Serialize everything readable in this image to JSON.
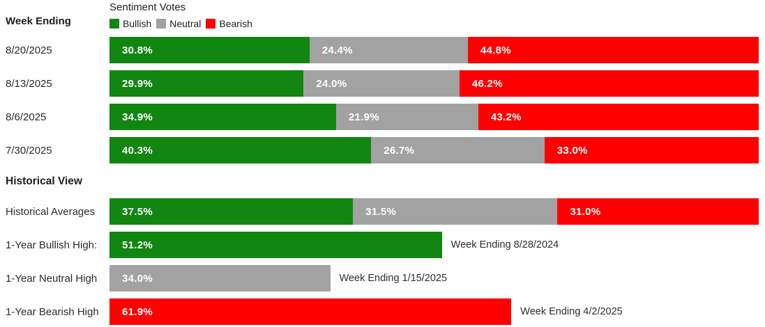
{
  "colors": {
    "bullish": "#118611",
    "neutral": "#a2a2a2",
    "bearish": "#fe0000"
  },
  "header": {
    "chart_title": "Sentiment Votes",
    "left_column_title": "Week Ending",
    "legend": [
      {
        "label": "Bullish"
      },
      {
        "label": "Neutral"
      },
      {
        "label": "Bearish"
      }
    ]
  },
  "weekly": {
    "rows": [
      {
        "week": "8/20/2025",
        "bullish": "30.8%",
        "neutral": "24.4%",
        "bearish": "44.8%"
      },
      {
        "week": "8/13/2025",
        "bullish": "29.9%",
        "neutral": "24.0%",
        "bearish": "46.2%"
      },
      {
        "week": "8/6/2025",
        "bullish": "34.9%",
        "neutral": "21.9%",
        "bearish": "43.2%"
      },
      {
        "week": "7/30/2025",
        "bullish": "40.3%",
        "neutral": "26.7%",
        "bearish": "33.0%"
      }
    ]
  },
  "historical": {
    "section_title": "Historical View",
    "averages": {
      "label": "Historical Averages",
      "bullish": "37.5%",
      "neutral": "31.5%",
      "bearish": "31.0%"
    },
    "highs": [
      {
        "label": "1-Year Bullish High:",
        "type": "bullish",
        "value": "51.2%",
        "note": "Week Ending 8/28/2024"
      },
      {
        "label": "1-Year Neutral High",
        "type": "neutral",
        "value": "34.0%",
        "note": "Week Ending 1/15/2025"
      },
      {
        "label": "1-Year Bearish High",
        "type": "bearish",
        "value": "61.9%",
        "note": "Week Ending 4/2/2025"
      }
    ]
  },
  "chart_data": {
    "type": "bar",
    "subtype": "horizontal-stacked",
    "title": "Sentiment Votes",
    "unit": "%",
    "xlim": [
      0,
      100
    ],
    "grid": false,
    "legend_entries": [
      "Bullish",
      "Neutral",
      "Bearish"
    ],
    "legend_position": "top",
    "categories": [
      "8/20/2025",
      "8/13/2025",
      "8/6/2025",
      "7/30/2025"
    ],
    "series": [
      {
        "name": "Bullish",
        "color": "#118611",
        "values": [
          30.8,
          29.9,
          34.9,
          40.3
        ]
      },
      {
        "name": "Neutral",
        "color": "#a2a2a2",
        "values": [
          24.4,
          24.0,
          21.9,
          26.7
        ]
      },
      {
        "name": "Bearish",
        "color": "#fe0000",
        "values": [
          44.8,
          46.2,
          43.2,
          33.0
        ]
      }
    ],
    "historical_view": {
      "historical_averages": {
        "Bullish": 37.5,
        "Neutral": 31.5,
        "Bearish": 31.0
      },
      "one_year_bullish_high": {
        "value": 51.2,
        "week_ending": "8/28/2024"
      },
      "one_year_neutral_high": {
        "value": 34.0,
        "week_ending": "1/15/2025"
      },
      "one_year_bearish_high": {
        "value": 61.9,
        "week_ending": "4/2/2025"
      }
    }
  }
}
